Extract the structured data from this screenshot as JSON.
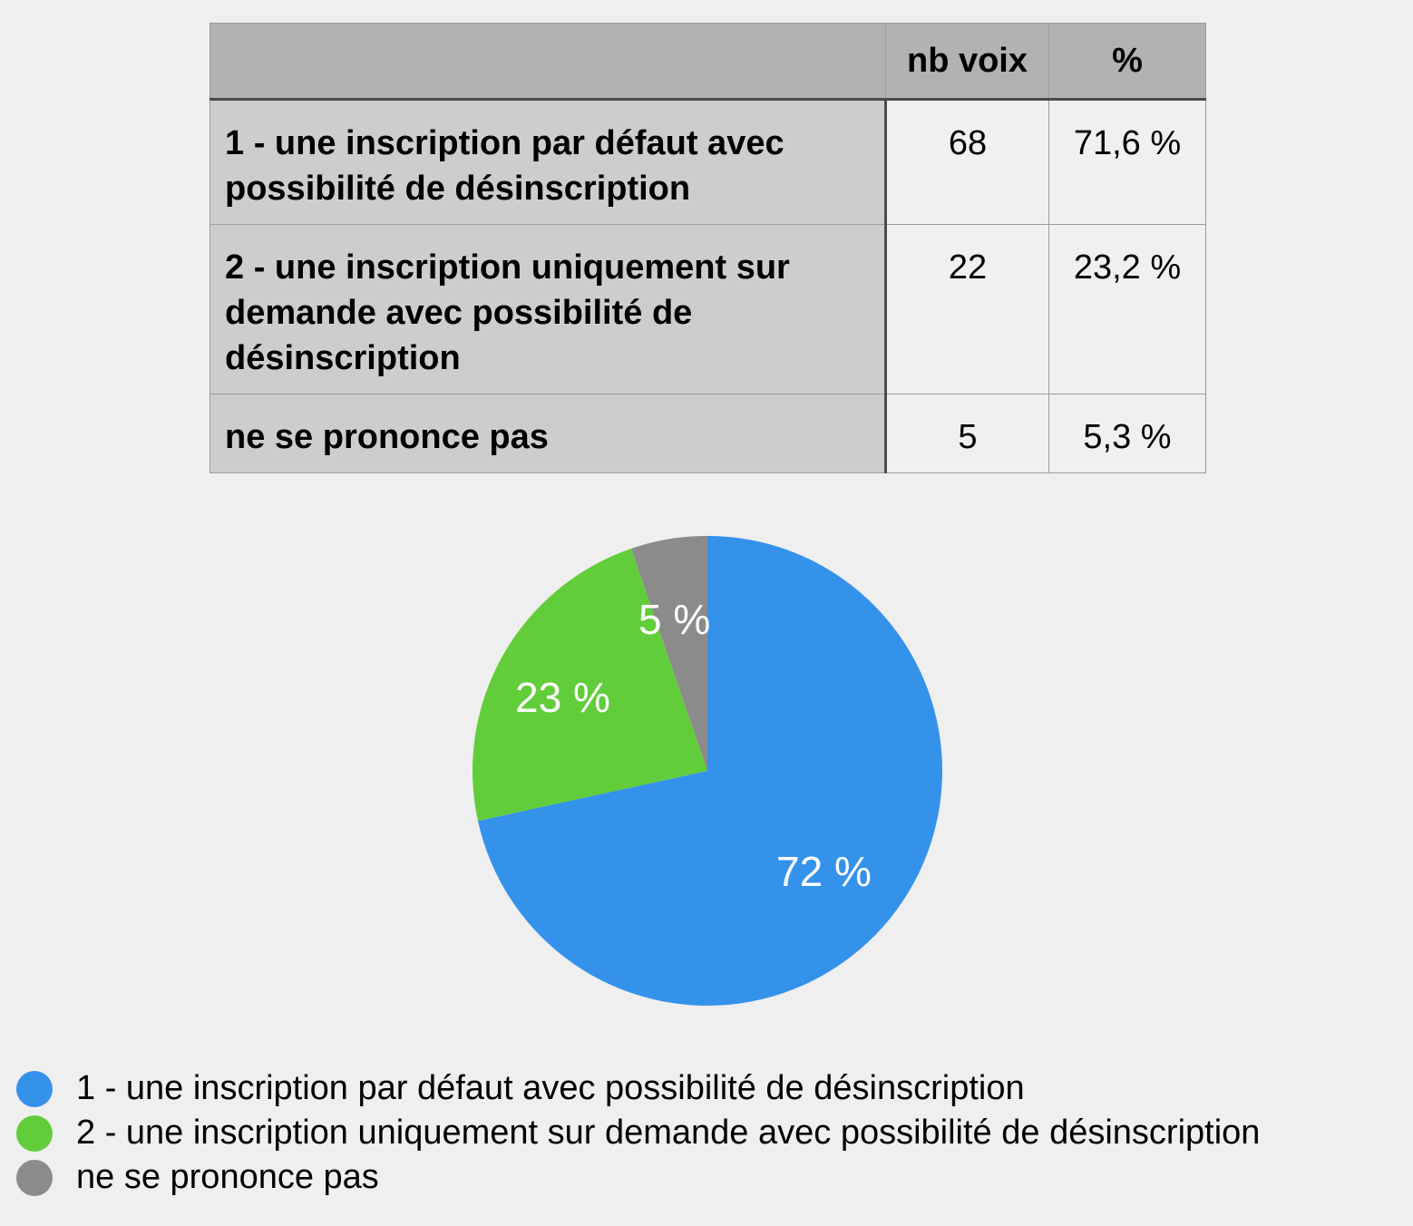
{
  "table": {
    "headers": [
      "",
      "nb voix",
      "%"
    ],
    "rows": [
      {
        "label": "1 - une inscription par défaut avec possibilité de désinscription",
        "votes": "68",
        "percent": "71,6 %"
      },
      {
        "label": "2 - une inscription uniquement sur demande avec possibilité de désinscription",
        "votes": "22",
        "percent": "23,2 %"
      },
      {
        "label": "ne se prononce pas",
        "votes": "5",
        "percent": "5,3 %"
      }
    ]
  },
  "chart_data": {
    "type": "pie",
    "title": "",
    "categories": [
      "1 - une inscription par défaut avec possibilité de désinscription",
      "2 - une inscription uniquement sur demande avec possibilité de désinscription",
      "ne se prononce pas"
    ],
    "values": [
      68,
      22,
      5
    ],
    "percent_labels": [
      "72 %",
      "23 %",
      "5 %"
    ],
    "colors": [
      "#3592eb",
      "#62cd3a",
      "#8b8b8b"
    ],
    "legend_position": "bottom-left",
    "start_angle": "12 o'clock, counterclockwise order: blue clockwise from top"
  },
  "legend": {
    "items": [
      {
        "label": "1 - une inscription par défaut avec possibilité de désinscription",
        "color": "#3592eb"
      },
      {
        "label": "2 - une inscription uniquement sur demande avec possibilité de désinscription",
        "color": "#62cd3a"
      },
      {
        "label": "ne se prononce pas",
        "color": "#8b8b8b"
      }
    ]
  }
}
